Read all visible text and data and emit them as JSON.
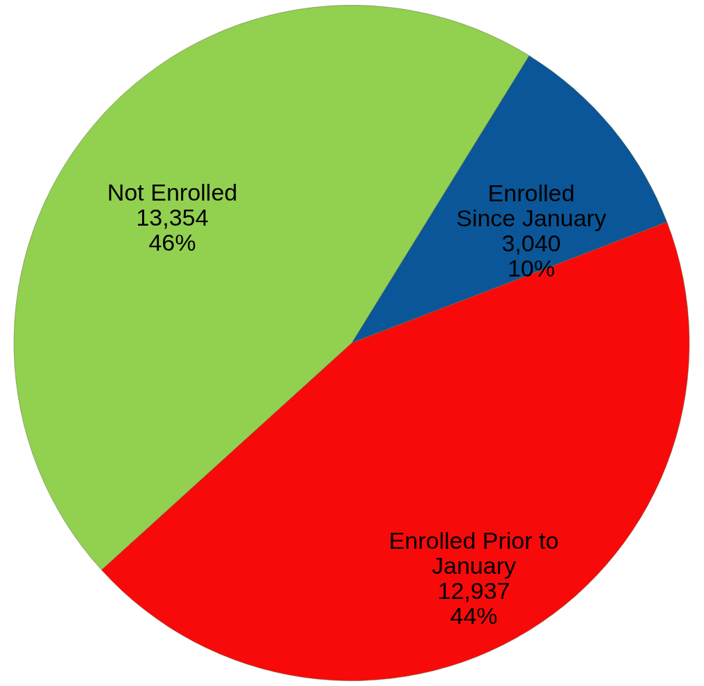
{
  "chart_data": {
    "type": "pie",
    "categories": [
      "Enrolled\nSince January",
      "Enrolled Prior to\nJanuary",
      "Not Enrolled"
    ],
    "values": [
      3040,
      12937,
      13354
    ],
    "value_labels": [
      "3,040\n10%",
      "12,937\n44%",
      "13,354\n46%"
    ],
    "colors": [
      "#0b5698",
      "#f80a0a",
      "#92d050"
    ],
    "legend": false
  }
}
